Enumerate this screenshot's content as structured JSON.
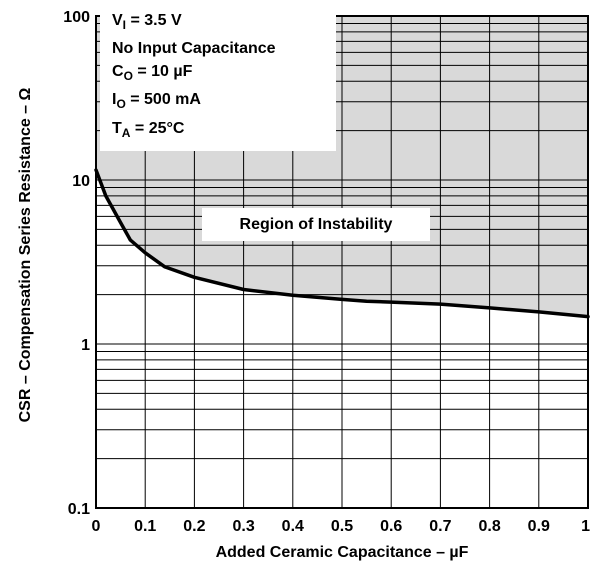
{
  "chart_data": {
    "type": "line",
    "title": "",
    "xlabel": "Added Ceramic Capacitance – µF",
    "ylabel": "CSR – Compensation Series Resistance – Ω",
    "xlim": [
      0,
      1
    ],
    "ylim": [
      0.1,
      100
    ],
    "yscale": "log",
    "x_ticks": [
      "0",
      "0.1",
      "0.2",
      "0.3",
      "0.4",
      "0.5",
      "0.6",
      "0.7",
      "0.8",
      "0.9",
      "1"
    ],
    "y_ticks": [
      "0.1",
      "1",
      "10",
      "100"
    ],
    "grid": true,
    "series": [
      {
        "x": [
          0,
          0.02,
          0.05,
          0.07,
          0.1,
          0.14,
          0.2,
          0.3,
          0.4,
          0.5,
          0.55,
          0.6,
          0.7,
          0.8,
          0.9,
          1.0
        ],
        "y": [
          11.5,
          8.0,
          5.5,
          4.3,
          3.6,
          2.95,
          2.55,
          2.15,
          1.98,
          1.87,
          1.82,
          1.8,
          1.75,
          1.66,
          1.57,
          1.47
        ]
      }
    ],
    "shaded_region": "above curve",
    "annotations": {
      "conditions": {
        "line1": {
          "a": "V",
          "sub": "I",
          "b": " = 3.5 V"
        },
        "line2": "No Input Capacitance",
        "line3": {
          "a": "C",
          "sub": "O",
          "b": " = 10 µF"
        },
        "line4": {
          "a": "I",
          "sub": "O",
          "b": " = 500 mA"
        },
        "line5": {
          "a": "T",
          "sub": "A",
          "b": " = 25°C"
        }
      },
      "region_label": "Region of Instability"
    },
    "colors": {
      "shade": "#d9d9d9",
      "curve": "#000000",
      "grid": "#000000"
    }
  }
}
